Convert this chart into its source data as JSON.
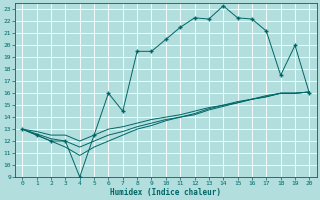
{
  "xlabel": "Humidex (Indice chaleur)",
  "bg_color": "#b2dede",
  "grid_color": "#ffffff",
  "line_color": "#006666",
  "xlim": [
    -0.5,
    20.5
  ],
  "ylim": [
    9,
    23.5
  ],
  "xticks": [
    0,
    1,
    2,
    3,
    4,
    5,
    6,
    7,
    8,
    9,
    10,
    11,
    12,
    13,
    14,
    15,
    16,
    17,
    18,
    19,
    20
  ],
  "yticks": [
    9,
    10,
    11,
    12,
    13,
    14,
    15,
    16,
    17,
    18,
    19,
    20,
    21,
    22,
    23
  ],
  "main_curve_x": [
    0,
    1,
    2,
    3,
    4,
    5,
    6,
    7,
    8,
    9,
    10,
    11,
    12,
    13,
    14,
    15,
    16,
    17,
    18,
    19,
    20
  ],
  "main_curve_y": [
    13,
    12.5,
    12,
    12,
    9,
    12.5,
    16,
    14.5,
    19.5,
    19.5,
    20.5,
    21.5,
    22.3,
    22.2,
    23.3,
    22.3,
    22.2,
    21.2,
    17.5,
    20,
    16
  ],
  "line1_x": [
    0,
    1,
    2,
    3,
    4,
    5,
    6,
    7,
    8,
    9,
    10,
    11,
    12,
    13,
    14,
    15,
    16,
    17,
    18,
    19,
    20
  ],
  "line1_y": [
    13,
    12.8,
    12.5,
    12.5,
    12.0,
    12.5,
    13.0,
    13.2,
    13.5,
    13.8,
    14.0,
    14.2,
    14.5,
    14.8,
    15.0,
    15.3,
    15.5,
    15.8,
    16.0,
    16.0,
    16.1
  ],
  "line2_x": [
    0,
    1,
    2,
    3,
    4,
    5,
    6,
    7,
    8,
    9,
    10,
    11,
    12,
    13,
    14,
    15,
    16,
    17,
    18,
    19,
    20
  ],
  "line2_y": [
    13,
    12.6,
    12.2,
    12.0,
    11.5,
    12.0,
    12.5,
    12.8,
    13.2,
    13.5,
    13.8,
    14.0,
    14.3,
    14.7,
    15.0,
    15.2,
    15.5,
    15.7,
    16.0,
    16.0,
    16.1
  ],
  "line3_x": [
    0,
    1,
    2,
    3,
    4,
    5,
    6,
    7,
    8,
    9,
    10,
    11,
    12,
    13,
    14,
    15,
    16,
    17,
    18,
    19,
    20
  ],
  "line3_y": [
    13,
    12.5,
    12.0,
    11.5,
    10.8,
    11.5,
    12.0,
    12.5,
    13.0,
    13.3,
    13.7,
    14.0,
    14.2,
    14.6,
    14.9,
    15.2,
    15.5,
    15.7,
    16.0,
    16.0,
    16.1
  ]
}
